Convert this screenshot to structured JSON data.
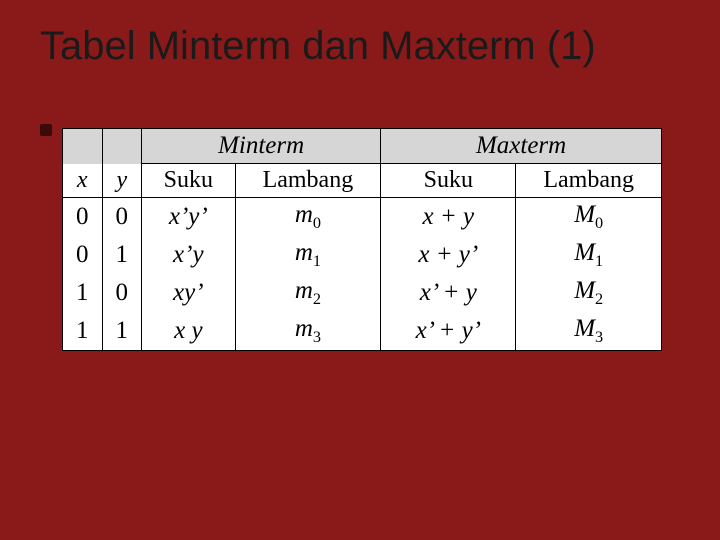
{
  "title": "Tabel Minterm dan Maxterm (1)",
  "colors": {
    "background": "#8a1a1a",
    "title": "#1a1a1a",
    "header_bg": "#d6d6d6",
    "cell_bg": "#ffffff",
    "border": "#000000"
  },
  "table": {
    "headers": {
      "minterm": "Minterm",
      "maxterm": "Maxterm",
      "x": "x",
      "y": "y",
      "suku": "Suku",
      "lambang": "Lambang"
    },
    "rows": [
      {
        "x": "0",
        "y": "0",
        "min_suku": "x’y’",
        "min_lamb_base": "m",
        "min_lamb_sub": "0",
        "max_suku": "x + y",
        "max_lamb_base": "M",
        "max_lamb_sub": "0"
      },
      {
        "x": "0",
        "y": "1",
        "min_suku": "x’y",
        "min_lamb_base": "m",
        "min_lamb_sub": "1",
        "max_suku": "x + y’",
        "max_lamb_base": "M",
        "max_lamb_sub": "1"
      },
      {
        "x": "1",
        "y": "0",
        "min_suku": "xy’",
        "min_lamb_base": "m",
        "min_lamb_sub": "2",
        "max_suku": "x’ + y",
        "max_lamb_base": "M",
        "max_lamb_sub": "2"
      },
      {
        "x": "1",
        "y": "1",
        "min_suku": "x y",
        "min_lamb_base": "m",
        "min_lamb_sub": "3",
        "max_suku": "x’ + y’",
        "max_lamb_base": "M",
        "max_lamb_sub": "3"
      }
    ]
  }
}
